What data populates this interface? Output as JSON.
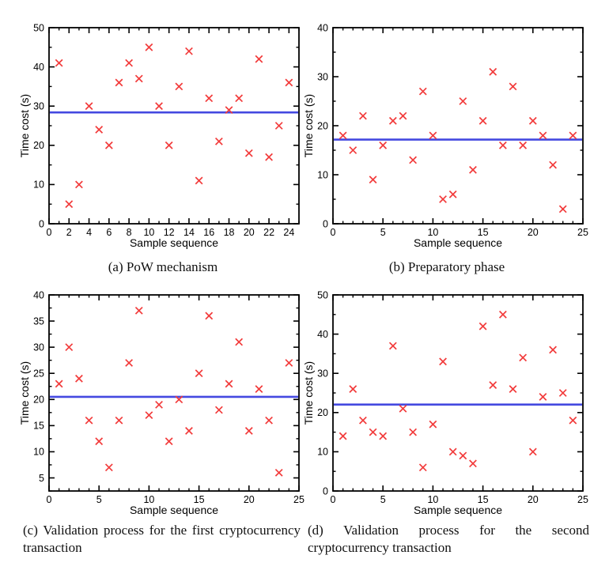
{
  "figure": {
    "axis_color": "#000000",
    "background": "#ffffff"
  },
  "chart_data": [
    {
      "id": "a",
      "type": "scatter",
      "caption": "(a) PoW mechanism",
      "xlabel": "Sample sequence",
      "ylabel": "Time cost (s)",
      "xlim": [
        0,
        25
      ],
      "ylim": [
        0,
        50
      ],
      "x_major_step": 2,
      "x_minor_step": 1,
      "y_major_step": 10,
      "y_minor_step": 5,
      "x": [
        1,
        2,
        3,
        4,
        5,
        6,
        7,
        8,
        9,
        10,
        11,
        12,
        13,
        14,
        15,
        16,
        17,
        18,
        19,
        20,
        21,
        22,
        23,
        24
      ],
      "y": [
        41,
        5,
        10,
        30,
        24,
        20,
        36,
        41,
        37,
        45,
        30,
        20,
        35,
        44,
        11,
        32,
        21,
        29,
        32,
        18,
        42,
        17,
        25,
        36
      ],
      "mean_line": 28.38,
      "marker": "x",
      "marker_color": "#f23b3b",
      "mean_line_color": "#4449e0",
      "legend": "none",
      "grid": false
    },
    {
      "id": "b",
      "type": "scatter",
      "caption": "(b) Preparatory phase",
      "xlabel": "Sample sequence",
      "ylabel": "Time cost (s)",
      "xlim": [
        0,
        25
      ],
      "ylim": [
        0,
        40
      ],
      "x_major_step": 5,
      "x_minor_step": 1,
      "y_major_step": 10,
      "y_minor_step": 5,
      "x": [
        1,
        2,
        3,
        4,
        5,
        6,
        7,
        8,
        9,
        10,
        11,
        12,
        13,
        14,
        15,
        16,
        17,
        18,
        19,
        20,
        21,
        22,
        23,
        24
      ],
      "y": [
        18,
        15,
        22,
        9,
        16,
        21,
        22,
        13,
        27,
        18,
        5,
        6,
        25,
        11,
        21,
        31,
        16,
        28,
        16,
        21,
        18,
        12,
        3,
        18
      ],
      "mean_line": 17.17,
      "marker": "x",
      "marker_color": "#f23b3b",
      "mean_line_color": "#4449e0",
      "legend": "none",
      "grid": false
    },
    {
      "id": "c",
      "type": "scatter",
      "caption": "(c) Validation process for the first cryptocurrency transaction",
      "xlabel": "Sample sequence",
      "ylabel": "Time cost (s)",
      "xlim": [
        0,
        25
      ],
      "ylim": [
        2.5,
        40
      ],
      "x_major_step": 5,
      "x_minor_step": 1,
      "y_major_step": 5,
      "y_minor_step": 2.5,
      "x": [
        1,
        2,
        3,
        4,
        5,
        6,
        7,
        8,
        9,
        10,
        11,
        12,
        13,
        14,
        15,
        16,
        17,
        18,
        19,
        20,
        21,
        22,
        23,
        24
      ],
      "y": [
        23,
        30,
        24,
        16,
        12,
        7,
        16,
        27,
        37,
        17,
        19,
        12,
        20,
        14,
        25,
        36,
        18,
        23,
        31,
        14,
        22,
        16,
        6,
        27
      ],
      "mean_line": 20.5,
      "marker": "x",
      "marker_color": "#f23b3b",
      "mean_line_color": "#4449e0",
      "legend": "none",
      "grid": false
    },
    {
      "id": "d",
      "type": "scatter",
      "caption": "(d) Validation process for the second cryptocurrency transaction",
      "xlabel": "Sample sequence",
      "ylabel": "Time cost (s)",
      "xlim": [
        0,
        25
      ],
      "ylim": [
        0,
        50
      ],
      "x_major_step": 5,
      "x_minor_step": 1,
      "y_major_step": 10,
      "y_minor_step": 5,
      "x": [
        1,
        2,
        3,
        4,
        5,
        6,
        7,
        8,
        9,
        10,
        11,
        12,
        13,
        14,
        15,
        16,
        17,
        18,
        19,
        20,
        21,
        22,
        23,
        24
      ],
      "y": [
        14,
        26,
        18,
        15,
        14,
        37,
        21,
        15,
        6,
        17,
        33,
        10,
        9,
        7,
        42,
        27,
        45,
        26,
        34,
        10,
        24,
        36,
        25,
        18
      ],
      "mean_line": 22.04,
      "marker": "x",
      "marker_color": "#f23b3b",
      "mean_line_color": "#4449e0",
      "legend": "none",
      "grid": false
    }
  ]
}
